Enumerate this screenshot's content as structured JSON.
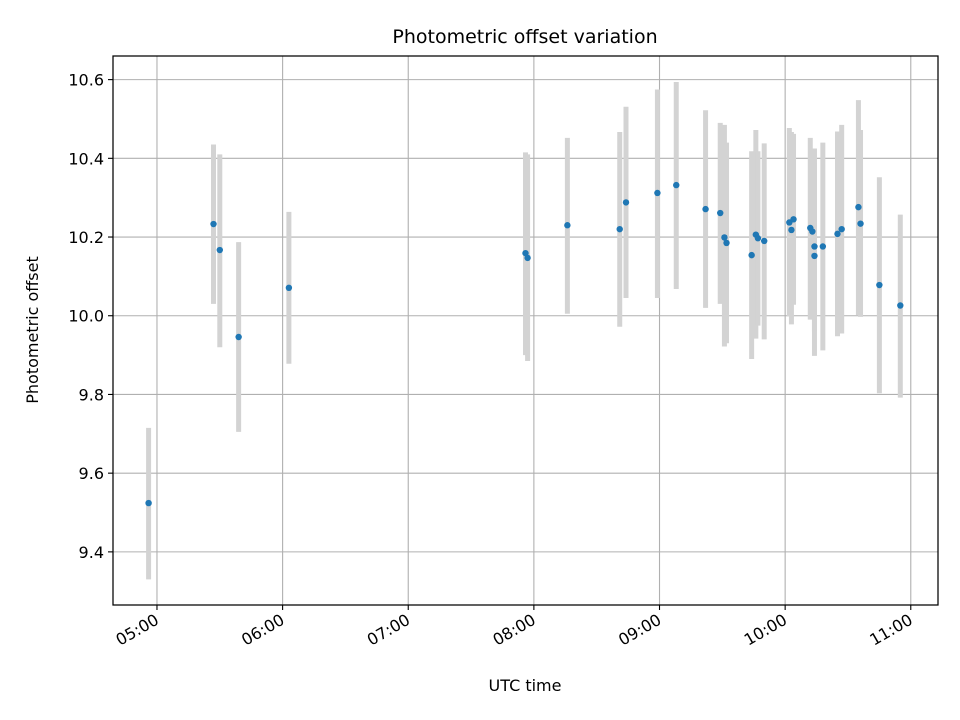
{
  "chart_data": {
    "type": "scatter",
    "title": "Photometric offset variation",
    "xlabel": "UTC time",
    "ylabel": "Photometric offset",
    "xlim": [
      "04:39",
      "11:13"
    ],
    "ylim": [
      9.265,
      10.66
    ],
    "x_ticks": [
      "05:00",
      "06:00",
      "07:00",
      "08:00",
      "09:00",
      "10:00",
      "11:00"
    ],
    "y_ticks": [
      9.4,
      9.6,
      9.8,
      10.0,
      10.2,
      10.4,
      10.6
    ],
    "y_tick_labels": [
      "9.4",
      "9.6",
      "9.8",
      "10.0",
      "10.2",
      "10.4",
      "10.6"
    ],
    "grid": true,
    "colors": {
      "marker": "#1f77b4",
      "errorbar": "#d3d3d3",
      "grid": "#b0b0b0",
      "axes": "#000000"
    },
    "points": [
      {
        "x": "04:56",
        "y": 9.524,
        "lo": 9.33,
        "hi": 9.715
      },
      {
        "x": "05:27",
        "y": 10.233,
        "lo": 10.03,
        "hi": 10.435
      },
      {
        "x": "05:30",
        "y": 10.167,
        "lo": 9.92,
        "hi": 10.41
      },
      {
        "x": "05:39",
        "y": 9.946,
        "lo": 9.705,
        "hi": 10.187
      },
      {
        "x": "06:03",
        "y": 10.071,
        "lo": 9.878,
        "hi": 10.264
      },
      {
        "x": "07:56",
        "y": 10.159,
        "lo": 9.9,
        "hi": 10.415
      },
      {
        "x": "07:57",
        "y": 10.147,
        "lo": 9.885,
        "hi": 10.41
      },
      {
        "x": "08:16",
        "y": 10.23,
        "lo": 10.005,
        "hi": 10.452
      },
      {
        "x": "08:41",
        "y": 10.22,
        "lo": 9.972,
        "hi": 10.467
      },
      {
        "x": "08:44",
        "y": 10.288,
        "lo": 10.045,
        "hi": 10.531
      },
      {
        "x": "08:59",
        "y": 10.312,
        "lo": 10.045,
        "hi": 10.575
      },
      {
        "x": "09:08",
        "y": 10.332,
        "lo": 10.068,
        "hi": 10.594
      },
      {
        "x": "09:22",
        "y": 10.271,
        "lo": 10.02,
        "hi": 10.522
      },
      {
        "x": "09:29",
        "y": 10.261,
        "lo": 10.03,
        "hi": 10.49
      },
      {
        "x": "09:31",
        "y": 10.199,
        "lo": 9.922,
        "hi": 10.485
      },
      {
        "x": "09:32",
        "y": 10.185,
        "lo": 9.93,
        "hi": 10.44
      },
      {
        "x": "09:44",
        "y": 10.154,
        "lo": 9.89,
        "hi": 10.418
      },
      {
        "x": "09:46",
        "y": 10.206,
        "lo": 9.942,
        "hi": 10.472
      },
      {
        "x": "09:47",
        "y": 10.197,
        "lo": 9.975,
        "hi": 10.418
      },
      {
        "x": "09:50",
        "y": 10.19,
        "lo": 9.94,
        "hi": 10.438
      },
      {
        "x": "10:02",
        "y": 10.237,
        "lo": 9.998,
        "hi": 10.477
      },
      {
        "x": "10:03",
        "y": 10.218,
        "lo": 9.978,
        "hi": 10.467
      },
      {
        "x": "10:04",
        "y": 10.245,
        "lo": 10.028,
        "hi": 10.462
      },
      {
        "x": "10:12",
        "y": 10.223,
        "lo": 9.99,
        "hi": 10.452
      },
      {
        "x": "10:13",
        "y": 10.214,
        "lo": 10.01,
        "hi": 10.42
      },
      {
        "x": "10:14",
        "y": 10.176,
        "lo": 9.96,
        "hi": 10.39
      },
      {
        "x": "10:14",
        "y": 10.152,
        "lo": 9.898,
        "hi": 10.425
      },
      {
        "x": "10:18",
        "y": 10.176,
        "lo": 9.912,
        "hi": 10.44
      },
      {
        "x": "10:25",
        "y": 10.208,
        "lo": 9.948,
        "hi": 10.468
      },
      {
        "x": "10:27",
        "y": 10.22,
        "lo": 9.955,
        "hi": 10.485
      },
      {
        "x": "10:35",
        "y": 10.276,
        "lo": 10.002,
        "hi": 10.548
      },
      {
        "x": "10:36",
        "y": 10.234,
        "lo": 9.997,
        "hi": 10.472
      },
      {
        "x": "10:45",
        "y": 10.078,
        "lo": 9.803,
        "hi": 10.352
      },
      {
        "x": "10:55",
        "y": 10.026,
        "lo": 9.792,
        "hi": 10.257
      }
    ]
  }
}
